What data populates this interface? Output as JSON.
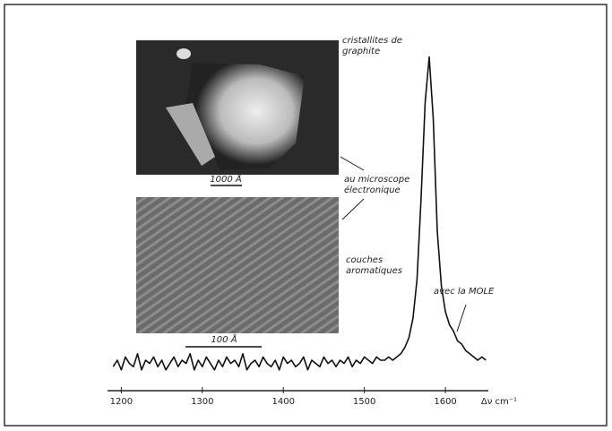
{
  "chart_data": {
    "type": "line",
    "x_label": "Δν cm⁻¹",
    "x": [
      1190,
      1195,
      1200,
      1205,
      1210,
      1215,
      1220,
      1225,
      1230,
      1235,
      1240,
      1245,
      1250,
      1255,
      1260,
      1265,
      1270,
      1275,
      1280,
      1285,
      1290,
      1295,
      1300,
      1305,
      1310,
      1315,
      1320,
      1325,
      1330,
      1335,
      1340,
      1345,
      1350,
      1355,
      1360,
      1365,
      1370,
      1375,
      1380,
      1385,
      1390,
      1395,
      1400,
      1405,
      1410,
      1415,
      1420,
      1425,
      1430,
      1435,
      1440,
      1445,
      1450,
      1455,
      1460,
      1465,
      1470,
      1475,
      1480,
      1485,
      1490,
      1495,
      1500,
      1505,
      1510,
      1515,
      1520,
      1525,
      1530,
      1535,
      1540,
      1545,
      1550,
      1555,
      1560,
      1565,
      1570,
      1575,
      1580,
      1585,
      1590,
      1595,
      1600,
      1605,
      1610,
      1615,
      1620,
      1625,
      1630,
      1635,
      1640,
      1645,
      1650
    ],
    "values": [
      3,
      5,
      2,
      6,
      4,
      3,
      7,
      2,
      5,
      4,
      6,
      3,
      5,
      2,
      4,
      6,
      3,
      5,
      4,
      7,
      2,
      5,
      3,
      6,
      4,
      2,
      5,
      3,
      6,
      4,
      5,
      3,
      7,
      2,
      4,
      5,
      3,
      6,
      4,
      3,
      5,
      2,
      6,
      4,
      5,
      3,
      4,
      6,
      2,
      5,
      4,
      3,
      6,
      4,
      5,
      3,
      5,
      4,
      6,
      3,
      5,
      4,
      6,
      5,
      4,
      6,
      5,
      5,
      6,
      5,
      6,
      7,
      9,
      12,
      18,
      30,
      55,
      85,
      99,
      80,
      45,
      28,
      20,
      16,
      14,
      11,
      10,
      8,
      7,
      6,
      5,
      6,
      5
    ],
    "color": "#111111",
    "xlim": [
      1183,
      1653
    ],
    "xticks": [
      1200,
      1300,
      1400,
      1500,
      1600
    ],
    "ylim": [
      0,
      100
    ],
    "annotations": [
      "cristallites de",
      "graphite",
      "1000 Å",
      "au microscope",
      "électronique",
      "100 Å",
      "couches",
      "aromatiques",
      "avec la MOLE"
    ]
  }
}
